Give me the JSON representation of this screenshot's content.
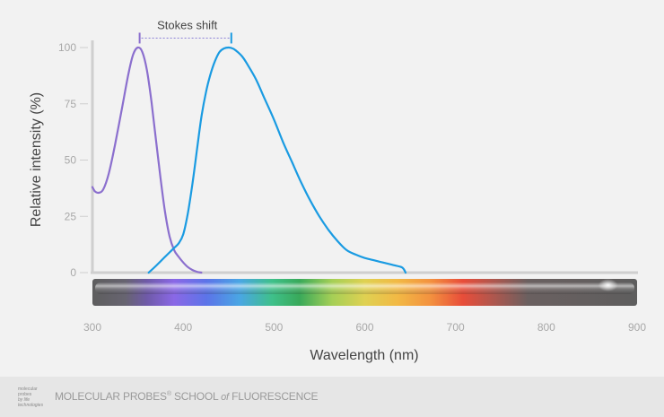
{
  "chart_data": {
    "type": "line",
    "title": "",
    "xlabel": "Wavelength (nm)",
    "ylabel": "Relative intensity (%)",
    "xlim": [
      300,
      900
    ],
    "ylim": [
      0,
      100
    ],
    "x_ticks": [
      300,
      400,
      500,
      600,
      700,
      800,
      900
    ],
    "y_ticks": [
      0,
      25,
      50,
      75,
      100
    ],
    "grid": false,
    "legend": "none",
    "series": [
      {
        "color": "#8b6fce",
        "x": [
          300,
          303,
          307,
          312,
          318,
          325,
          333,
          340,
          345,
          350,
          355,
          360,
          365,
          370,
          375,
          380,
          385,
          390,
          395,
          400,
          405,
          410,
          415,
          420
        ],
        "y": [
          38,
          36,
          35.5,
          37,
          44,
          57,
          74,
          89,
          97,
          100,
          98,
          90,
          76,
          59,
          42,
          27,
          16,
          10,
          7,
          4.5,
          2.5,
          1.2,
          0.4,
          0
        ]
      },
      {
        "color": "#1a9be2",
        "x": [
          362,
          370,
          380,
          390,
          395,
          400,
          405,
          410,
          415,
          420,
          425,
          430,
          435,
          440,
          445,
          450,
          455,
          460,
          465,
          470,
          480,
          490,
          500,
          510,
          520,
          530,
          540,
          550,
          560,
          570,
          580,
          590,
          600,
          610,
          620,
          630,
          640,
          643,
          645
        ],
        "y": [
          0,
          3,
          7,
          11,
          13,
          17,
          26,
          39,
          54,
          69,
          80,
          88,
          94,
          98,
          99.6,
          100,
          99.5,
          98,
          96,
          93,
          86,
          77,
          68,
          58,
          49,
          40,
          32,
          25,
          19,
          14,
          10,
          8,
          6.5,
          5.5,
          4.5,
          3.5,
          2.5,
          1.5,
          0
        ]
      }
    ],
    "annotations": [
      {
        "text": "Stokes shift",
        "from_x": 352,
        "to_x": 453,
        "y": 105
      }
    ],
    "spectrum_bar": true
  },
  "colors": {
    "excitation": "#8b6fce",
    "emission": "#1a9be2",
    "axis": "#cfcfcf",
    "tick_label": "#a8a8a8",
    "axis_label": "#444444",
    "background": "#f2f2f2",
    "footer_bg": "#e6e6e6"
  },
  "footer": {
    "logo_line1": "molecular",
    "logo_line2": "probes",
    "logo_line3": "by life technologies",
    "brand": "MOLECULAR PROBES",
    "reg": "®",
    "school": "SCHOOL",
    "of": "of",
    "fluorescence": "FLUORESCENCE"
  }
}
